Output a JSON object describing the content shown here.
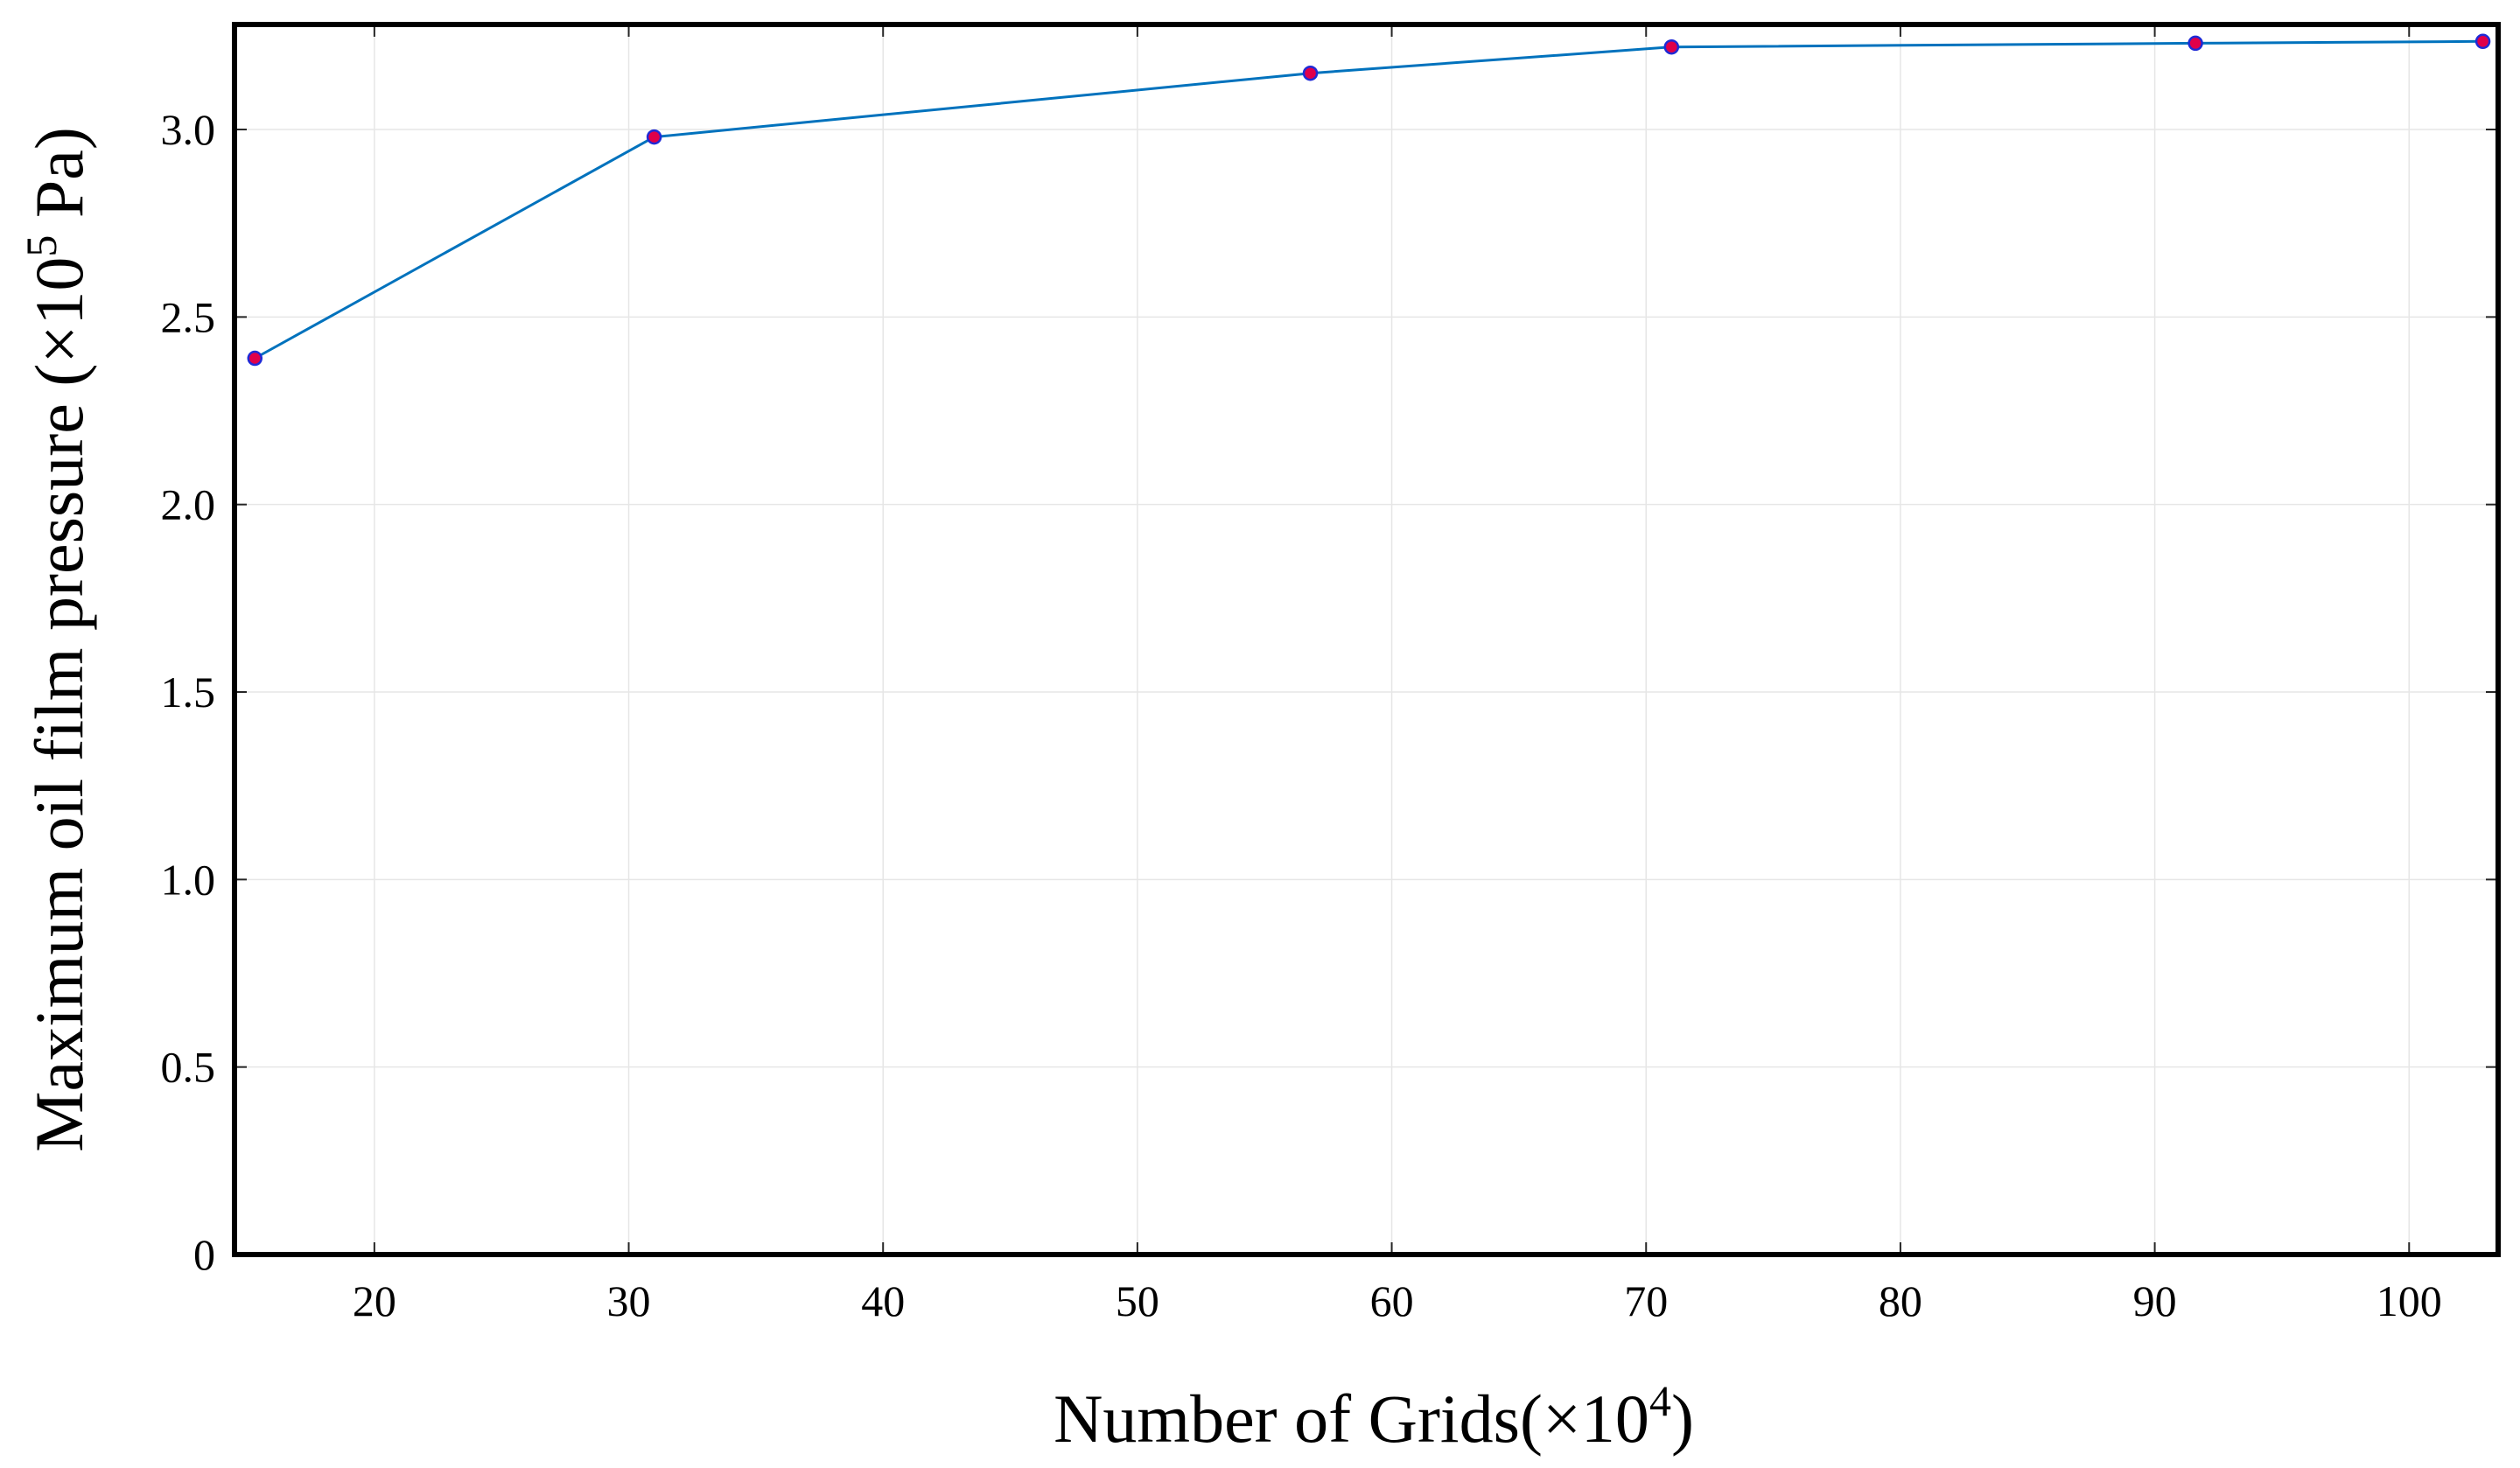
{
  "chart_data": {
    "type": "line",
    "title": "",
    "xlabel": {
      "prefix": "Number of Grids(",
      "multiplier": "×10",
      "exponent": "4",
      "suffix": ")"
    },
    "ylabel": {
      "prefix": "Maximum oil film pressure (",
      "multiplier": "×10",
      "exponent": "5",
      "suffix": " Pa)"
    },
    "xlim": [
      14.5,
      103.5
    ],
    "ylim": [
      0,
      3.28
    ],
    "xticks": [
      20,
      30,
      40,
      50,
      60,
      70,
      80,
      90,
      100
    ],
    "xtick_labels": [
      "20",
      "30",
      "40",
      "50",
      "60",
      "70",
      "80",
      "90",
      "100"
    ],
    "yticks": [
      0,
      0.5,
      1.0,
      1.5,
      2.0,
      2.5,
      3.0
    ],
    "ytick_labels": [
      "0",
      "0.5",
      "1.0",
      "1.5",
      "2.0",
      "2.5",
      "3.0"
    ],
    "grid": true,
    "series": [
      {
        "name": "Maximum oil film pressure",
        "x": [
          15.3,
          31.0,
          56.8,
          71.0,
          91.6,
          102.9
        ],
        "y": [
          2.39,
          2.98,
          3.15,
          3.22,
          3.23,
          3.235
        ],
        "line_color": "#0072BD",
        "marker_face": "#E0004A",
        "marker_edge": "#1F2AD6"
      }
    ]
  }
}
